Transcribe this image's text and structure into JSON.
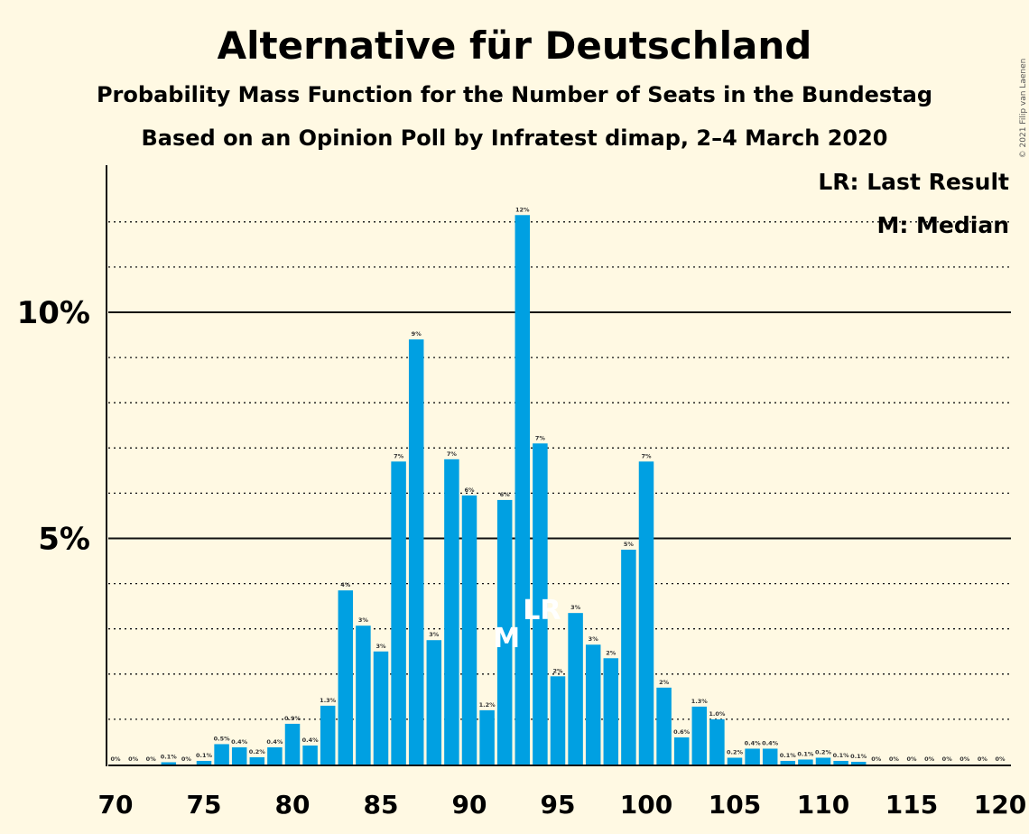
{
  "title": "Alternative für Deutschland",
  "subtitle1": "Probability Mass Function for the Number of Seats in the Bundestag",
  "subtitle2": "Based on an Opinion Poll by Infratest dimap, 2–4 March 2020",
  "copyright": "© 2021 Filip van Laenen",
  "legend": {
    "lr": "LR: Last Result",
    "m": "M: Median"
  },
  "colors": {
    "bar": "#00a0e2",
    "background": "#fff9e3"
  },
  "chart_data": {
    "type": "bar",
    "x": [
      70,
      71,
      72,
      73,
      74,
      75,
      76,
      77,
      78,
      79,
      80,
      81,
      82,
      83,
      84,
      85,
      86,
      87,
      88,
      89,
      90,
      91,
      92,
      93,
      94,
      95,
      96,
      97,
      98,
      99,
      100,
      101,
      102,
      103,
      104,
      105,
      106,
      107,
      108,
      109,
      110,
      111,
      112,
      113,
      114,
      115,
      116,
      117,
      118,
      119,
      120
    ],
    "values": [
      0,
      0,
      0,
      0.05,
      0,
      0.08,
      0.45,
      0.38,
      0.16,
      0.38,
      0.9,
      0.42,
      1.3,
      3.85,
      3.07,
      2.5,
      6.7,
      9.4,
      2.75,
      6.75,
      5.95,
      1.2,
      5.85,
      12.15,
      7.1,
      1.95,
      3.35,
      2.65,
      2.35,
      4.75,
      6.7,
      1.7,
      0.6,
      1.28,
      1.0,
      0.15,
      0.35,
      0.35,
      0.08,
      0.11,
      0.15,
      0.08,
      0.06,
      0,
      0,
      0,
      0,
      0,
      0,
      0,
      0
    ],
    "labels": [
      "0%",
      "0%",
      "0%",
      "0.1%",
      "0%",
      "0.1%",
      "0.5%",
      "0.4%",
      "0.2%",
      "0.4%",
      "0.9%",
      "0.4%",
      "1.3%",
      "4%",
      "3%",
      "3%",
      "7%",
      "9%",
      "3%",
      "7%",
      "6%",
      "1.2%",
      "6%",
      "12%",
      "7%",
      "2%",
      "3%",
      "3%",
      "2%",
      "5%",
      "7%",
      "2%",
      "0.6%",
      "1.3%",
      "1.0%",
      "0.2%",
      "0.4%",
      "0.4%",
      "0.1%",
      "0.1%",
      "0.2%",
      "0.1%",
      "0.1%",
      "0%",
      "0%",
      "0%",
      "0%",
      "0%",
      "0%",
      "0%",
      "0%"
    ],
    "xlim": [
      70,
      120
    ],
    "ylim": [
      0,
      13.2
    ],
    "yticks": [
      {
        "value": 5,
        "label": "5%"
      },
      {
        "value": 10,
        "label": "10%"
      }
    ],
    "xticks": [
      70,
      75,
      80,
      85,
      90,
      95,
      100,
      105,
      110,
      115,
      120
    ],
    "grid": "dotted every 1%, solid at 5% and 10%",
    "median": {
      "x": 92,
      "label": "M"
    },
    "last_result": {
      "x": 94,
      "label": "LR"
    },
    "legend_position": "top-right"
  }
}
